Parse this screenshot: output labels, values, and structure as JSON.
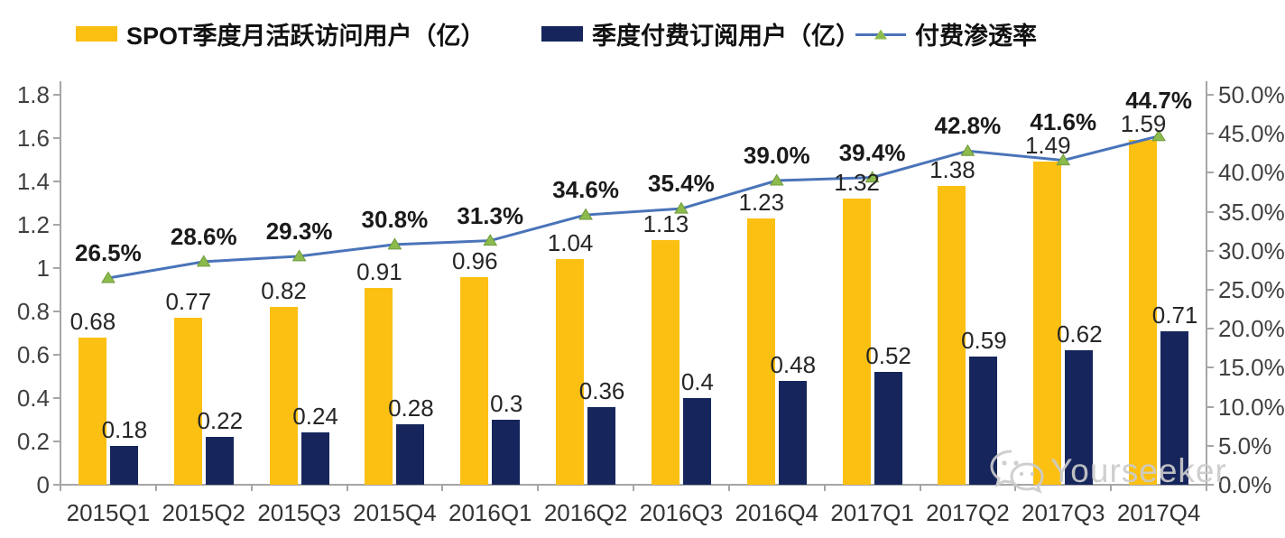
{
  "legend": {
    "items": [
      {
        "label": "SPOT季度月活跃访问用户（亿）",
        "type": "bar",
        "color": "#FCC013"
      },
      {
        "label": "季度付费订阅用户（亿）",
        "type": "bar",
        "color": "#16265C"
      },
      {
        "label": "付费渗透率",
        "type": "line",
        "color": "#4A74B9",
        "marker_color": "#8CBB4D"
      }
    ]
  },
  "chart_data": {
    "type": "bar",
    "subtype": "clustered-bars-with-line",
    "categories": [
      "2015Q1",
      "2015Q2",
      "2015Q3",
      "2015Q4",
      "2016Q1",
      "2016Q2",
      "2016Q3",
      "2016Q4",
      "2017Q1",
      "2017Q2",
      "2017Q3",
      "2017Q4"
    ],
    "series": [
      {
        "name": "SPOT季度月活跃访问用户（亿）",
        "type": "bar",
        "axis": "left",
        "color": "#FCC013",
        "values": [
          0.68,
          0.77,
          0.82,
          0.91,
          0.96,
          1.04,
          1.13,
          1.23,
          1.32,
          1.38,
          1.49,
          1.59
        ],
        "labels": [
          "0.68",
          "0.77",
          "0.82",
          "0.91",
          "0.96",
          "1.04",
          "1.13",
          "1.23",
          "1.32",
          "1.38",
          "1.49",
          "1.59"
        ]
      },
      {
        "name": "季度付费订阅用户（亿）",
        "type": "bar",
        "axis": "left",
        "color": "#16265C",
        "values": [
          0.18,
          0.22,
          0.24,
          0.28,
          0.3,
          0.36,
          0.4,
          0.48,
          0.52,
          0.59,
          0.62,
          0.71
        ],
        "labels": [
          "0.18",
          "0.22",
          "0.24",
          "0.28",
          "0.3",
          "0.36",
          "0.4",
          "0.48",
          "0.52",
          "0.59",
          "0.62",
          "0.71"
        ]
      },
      {
        "name": "付费渗透率",
        "type": "line",
        "axis": "right",
        "color": "#4A74B9",
        "marker": "triangle",
        "marker_color": "#8CBB4D",
        "values": [
          26.5,
          28.6,
          29.3,
          30.8,
          31.3,
          34.6,
          35.4,
          39.0,
          39.4,
          42.8,
          41.6,
          44.7
        ],
        "labels": [
          "26.5%",
          "28.6%",
          "29.3%",
          "30.8%",
          "31.3%",
          "34.6%",
          "35.4%",
          "39.0%",
          "39.4%",
          "42.8%",
          "41.6%",
          "44.7%"
        ]
      }
    ],
    "left_axis": {
      "min": 0,
      "max": 1.8,
      "step": 0.2,
      "ticks_top_to_bottom": [
        "1.8",
        "1.6",
        "1.4",
        "1.2",
        "1",
        "0.8",
        "0.6",
        "0.4",
        "0.2",
        "0"
      ]
    },
    "right_axis": {
      "min": 0,
      "max": 50,
      "step": 5,
      "ticks_top_to_bottom": [
        "50.0%",
        "45.0%",
        "40.0%",
        "35.0%",
        "30.0%",
        "25.0%",
        "20.0%",
        "15.0%",
        "10.0%",
        "5.0%",
        "0.0%"
      ]
    },
    "grid": false,
    "legend_position": "top",
    "axis_color": "#A6A6A6"
  },
  "watermark": {
    "label": "Yourseeker",
    "icon": "wechat-icon"
  }
}
